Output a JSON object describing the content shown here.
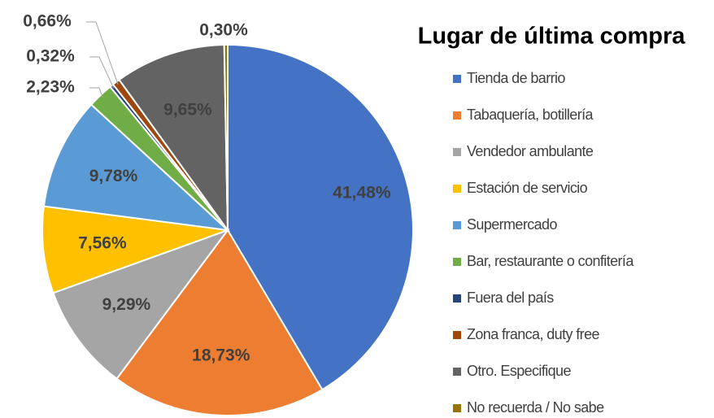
{
  "chart_data": {
    "type": "pie",
    "title": "Lugar de última compra",
    "categories": [
      "Tienda de barrio",
      "Tabaquería, botillería",
      "Vendedor ambulante",
      "Estación de servicio",
      "Supermercado",
      "Bar, restaurante o confitería",
      "Fuera del país",
      "Zona franca, duty free",
      "Otro. Especifique",
      "No recuerda / No sabe"
    ],
    "values": [
      41.48,
      18.73,
      9.29,
      7.56,
      9.78,
      2.23,
      0.32,
      0.66,
      9.65,
      0.3
    ],
    "value_labels": [
      "41,48%",
      "18,73%",
      "9,29%",
      "7,56%",
      "9,78%",
      "2,23%",
      "0,32%",
      "0,66%",
      "9,65%",
      "0,30%"
    ],
    "colors": [
      "#4472c4",
      "#ed7d31",
      "#a5a5a5",
      "#ffc000",
      "#5b9bd5",
      "#70ad47",
      "#264478",
      "#9e480e",
      "#636363",
      "#997300"
    ],
    "legend": "right"
  }
}
